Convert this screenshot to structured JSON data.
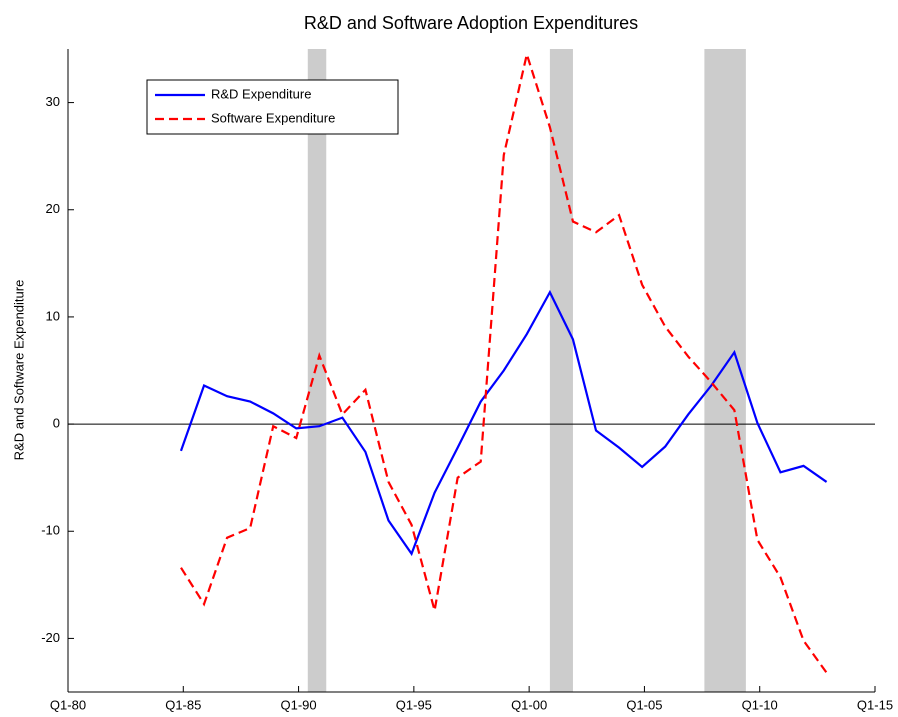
{
  "chart_data": {
    "type": "line",
    "title": "R&D and Software Adoption Expenditures",
    "y_label": "R&D and Software Expenditure",
    "x": [
      1984.9,
      1985.9,
      1986.9,
      1987.9,
      1988.9,
      1989.9,
      1990.9,
      1991.9,
      1992.9,
      1993.9,
      1994.9,
      1995.9,
      1996.9,
      1997.9,
      1998.9,
      1999.9,
      2000.9,
      2001.9,
      2002.9,
      2003.9,
      2004.9,
      2005.9,
      2006.9,
      2007.9,
      2008.9,
      2009.9,
      2010.9,
      2011.9,
      2012.9
    ],
    "series": [
      {
        "name": "R&D Expenditure",
        "color": "#0000ff",
        "dash": "solid",
        "values": [
          -2.5,
          3.6,
          2.6,
          2.1,
          1.0,
          -0.4,
          -0.2,
          0.6,
          -2.6,
          -9.0,
          -12.1,
          -6.4,
          -2.2,
          2.1,
          5.0,
          8.4,
          12.3,
          7.9,
          -0.6,
          -2.2,
          -4.0,
          -2.1,
          0.9,
          3.6,
          6.7,
          0.1,
          -4.5,
          -3.9,
          -5.4
        ]
      },
      {
        "name": "Software Expenditure",
        "color": "#ff0000",
        "dash": "dashed",
        "values": [
          -13.4,
          -16.8,
          -10.6,
          -9.7,
          -0.2,
          -1.3,
          6.4,
          0.9,
          3.2,
          -5.4,
          -9.4,
          -17.4,
          -5.0,
          -3.5,
          25.1,
          34.5,
          27.7,
          18.9,
          17.9,
          19.5,
          13.0,
          9.1,
          6.3,
          3.9,
          1.3,
          -10.8,
          -14.3,
          -20.2,
          -23.2
        ]
      }
    ],
    "shaded_regions": [
      [
        1990.4,
        1991.2
      ],
      [
        2000.9,
        2001.9
      ],
      [
        2007.6,
        2009.4
      ]
    ],
    "shade_color": "#cccccc",
    "hline": 0,
    "xlim": [
      1980,
      2015
    ],
    "xticks": [
      {
        "value": 1980,
        "label": "Q1-80"
      },
      {
        "value": 1985,
        "label": "Q1-85"
      },
      {
        "value": 1990,
        "label": "Q1-90"
      },
      {
        "value": 1995,
        "label": "Q1-95"
      },
      {
        "value": 2000,
        "label": "Q1-00"
      },
      {
        "value": 2005,
        "label": "Q1-05"
      },
      {
        "value": 2010,
        "label": "Q1-10"
      },
      {
        "value": 2015,
        "label": "Q1-15"
      }
    ],
    "ylim": [
      -25,
      35
    ],
    "yticks": [
      -20,
      -10,
      0,
      10,
      20,
      30
    ],
    "legend": "upper left"
  }
}
